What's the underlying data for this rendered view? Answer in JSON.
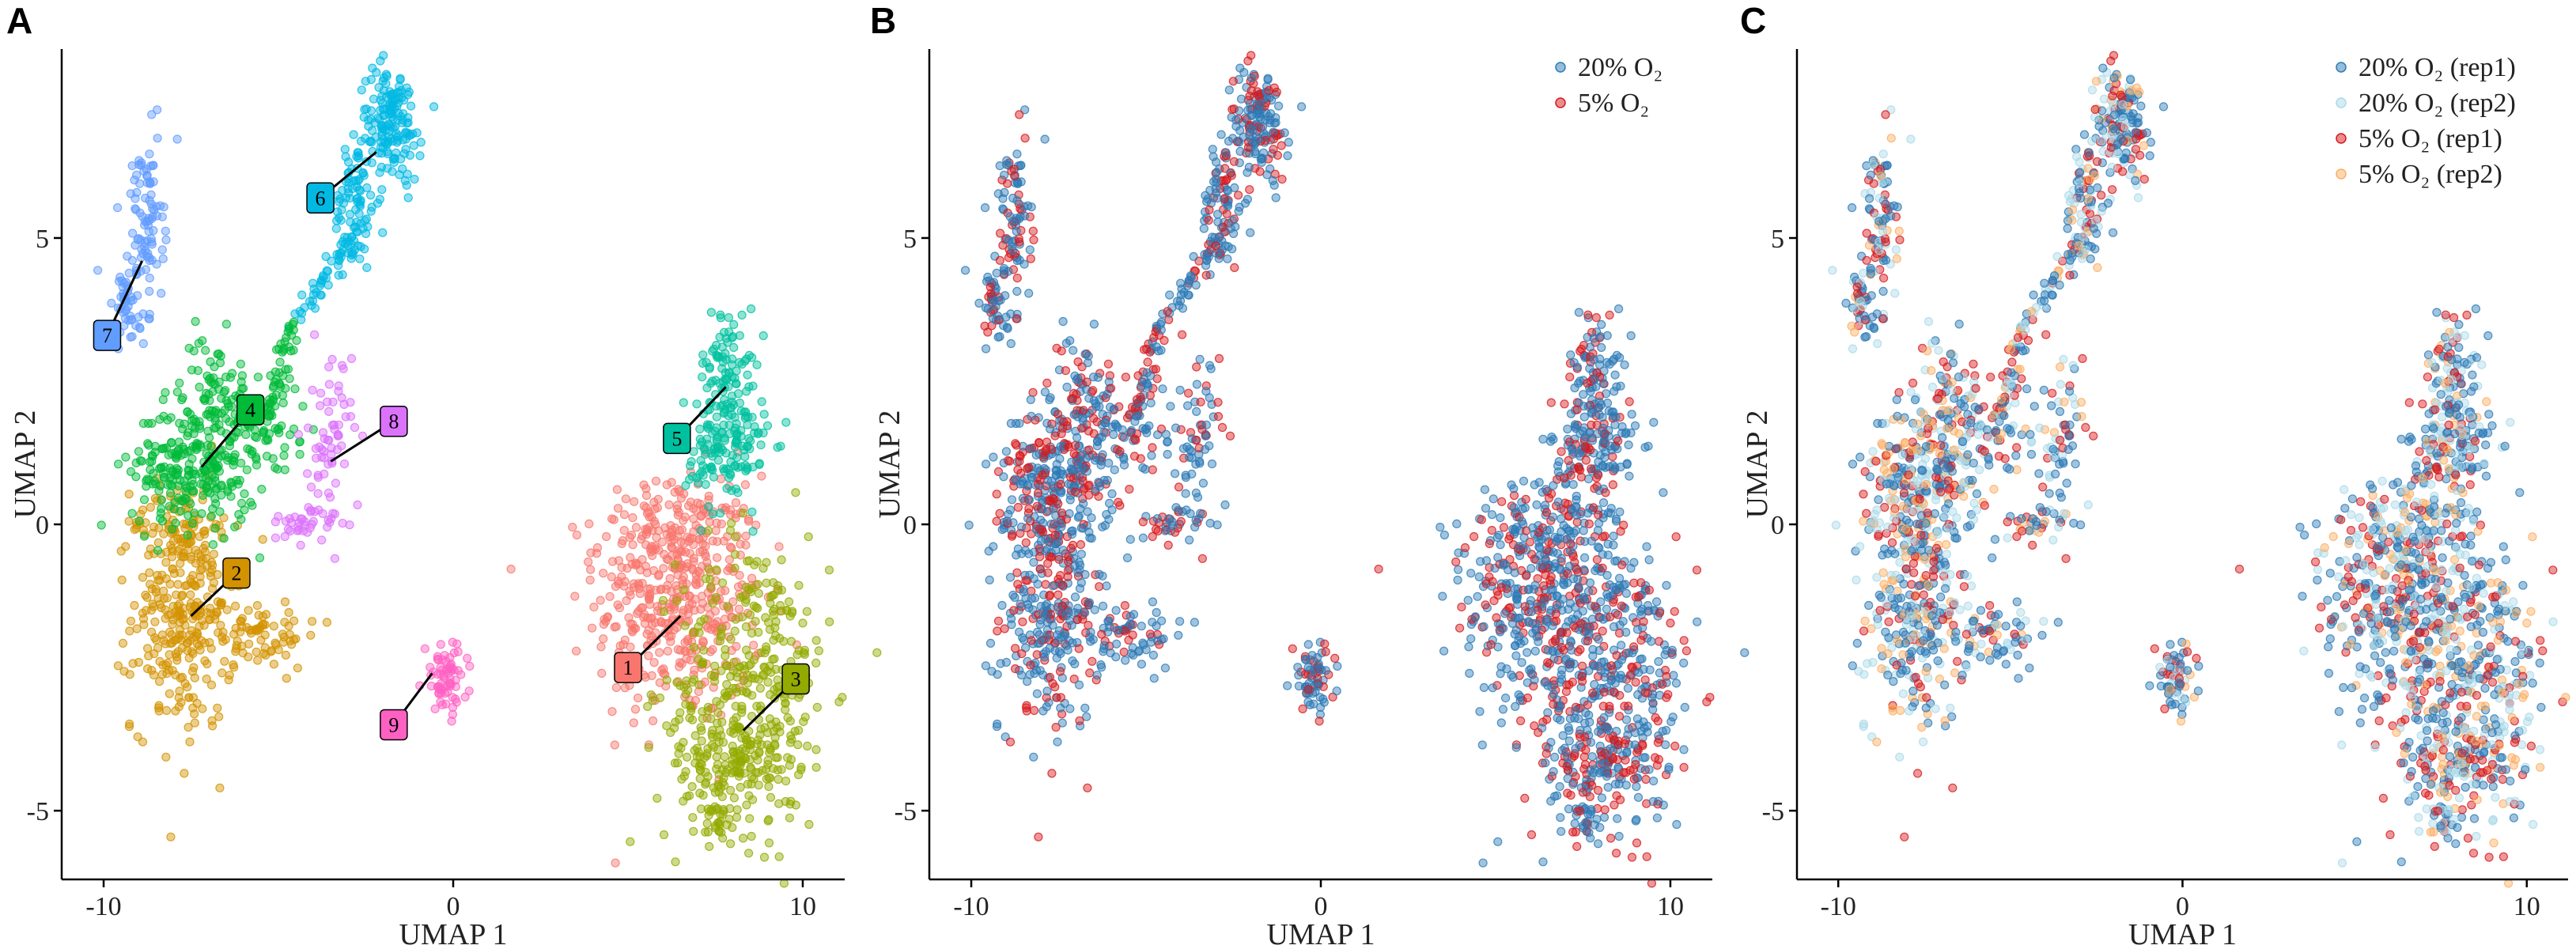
{
  "chart_data": [
    {
      "panel": "A",
      "type": "scatter",
      "xlabel": "UMAP 1",
      "ylabel": "UMAP 2",
      "xlim": [
        -11.2,
        11.2
      ],
      "ylim": [
        -6.2,
        8.3
      ],
      "xticks": [
        -10,
        0,
        10
      ],
      "xtick_labels": [
        "-10",
        "0",
        "10"
      ],
      "yticks": [
        -5,
        0,
        5
      ],
      "ytick_labels": [
        "-5",
        "0",
        "5"
      ],
      "grid": false,
      "legend": "none",
      "color_by": "cluster",
      "clusters": [
        {
          "id": "1",
          "color": "#F8766D",
          "center": [
            6.5,
            -1.6
          ],
          "label_pos": [
            5.0,
            -2.5
          ]
        },
        {
          "id": "2",
          "color": "#D39200",
          "center": [
            -7.5,
            -1.6
          ],
          "label_pos": [
            -6.2,
            -0.85
          ]
        },
        {
          "id": "3",
          "color": "#93AA00",
          "center": [
            8.3,
            -3.6
          ],
          "label_pos": [
            9.8,
            -2.7
          ]
        },
        {
          "id": "4",
          "color": "#00BA38",
          "center": [
            -7.2,
            1.0
          ],
          "label_pos": [
            -5.8,
            2.0
          ]
        },
        {
          "id": "5",
          "color": "#00C19F",
          "center": [
            7.8,
            2.4
          ],
          "label_pos": [
            6.4,
            1.5
          ]
        },
        {
          "id": "6",
          "color": "#00B9E3",
          "center": [
            -2.2,
            6.5
          ],
          "label_pos": [
            -3.8,
            5.7
          ]
        },
        {
          "id": "7",
          "color": "#619CFF",
          "center": [
            -8.9,
            4.6
          ],
          "label_pos": [
            -9.9,
            3.3
          ]
        },
        {
          "id": "8",
          "color": "#DB72FB",
          "center": [
            -3.5,
            1.1
          ],
          "label_pos": [
            -1.7,
            1.8
          ]
        },
        {
          "id": "9",
          "color": "#FF61C3",
          "center": [
            -0.6,
            -2.6
          ],
          "label_pos": [
            -1.7,
            -3.5
          ]
        }
      ]
    },
    {
      "panel": "B",
      "type": "scatter",
      "xlabel": "UMAP 1",
      "ylabel": "UMAP 2",
      "xlim": [
        -11.2,
        11.2
      ],
      "ylim": [
        -6.2,
        8.3
      ],
      "xticks": [
        -10,
        0,
        10
      ],
      "xtick_labels": [
        "-10",
        "0",
        "10"
      ],
      "yticks": [
        -5,
        0,
        5
      ],
      "ytick_labels": [
        "-5",
        "0",
        "5"
      ],
      "grid": false,
      "legend": "top-right",
      "color_by": "oxygen",
      "series": [
        {
          "name": "20% O₂",
          "color": "#2C7BB6"
        },
        {
          "name": "5% O₂",
          "color": "#D7191C"
        }
      ]
    },
    {
      "panel": "C",
      "type": "scatter",
      "xlabel": "UMAP 1",
      "ylabel": "UMAP 2",
      "xlim": [
        -11.2,
        11.2
      ],
      "ylim": [
        -6.2,
        8.3
      ],
      "xticks": [
        -10,
        0,
        10
      ],
      "xtick_labels": [
        "-10",
        "0",
        "10"
      ],
      "yticks": [
        -5,
        0,
        5
      ],
      "ytick_labels": [
        "-5",
        "0",
        "5"
      ],
      "grid": false,
      "legend": "top-right",
      "color_by": "replicate",
      "series": [
        {
          "name": "20% O₂ (rep1)",
          "color": "#2C7BB6"
        },
        {
          "name": "20% O₂ (rep2)",
          "color": "#ABD9E9"
        },
        {
          "name": "5% O₂ (rep1)",
          "color": "#D7191C"
        },
        {
          "name": "5% O₂ (rep2)",
          "color": "#FDAE61"
        }
      ]
    }
  ]
}
